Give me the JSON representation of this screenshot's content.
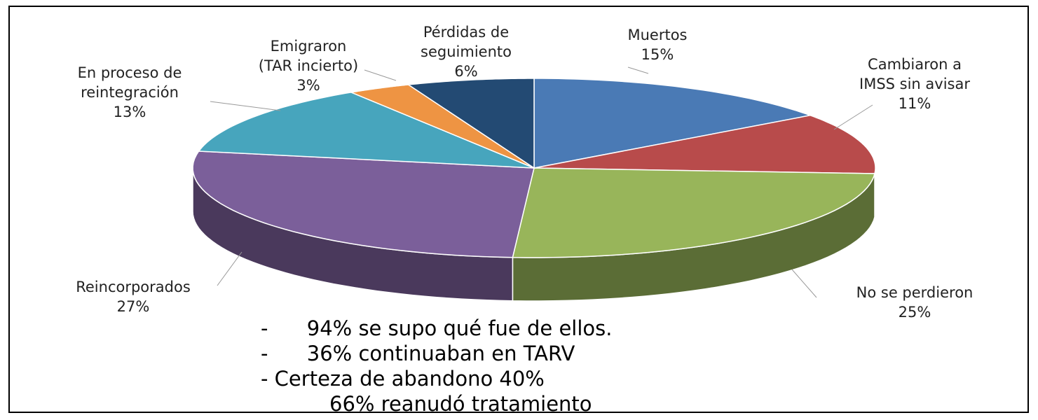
{
  "chart_data": {
    "type": "pie3d",
    "categories": [
      "Muertos",
      "Cambiaron a\nIMSS sin avisar",
      "No se perdieron",
      "Reincorporados",
      "En proceso de\nreintegración",
      "Emigraron\n(TAR incierto)",
      "Pérdidas de\nseguimiento"
    ],
    "values": [
      15,
      11,
      25,
      27,
      13,
      3,
      6
    ],
    "value_labels": [
      "15%",
      "11%",
      "25%",
      "27%",
      "13%",
      "3%",
      "6%"
    ],
    "colors": [
      "#4a7ab5",
      "#b84b4b",
      "#98b55a",
      "#7b5f9a",
      "#47a5bd",
      "#ee9443",
      "#234a73"
    ],
    "notes": [
      "-      94% se supo qué fue de ellos.",
      "-      36% continuaban en TARV",
      "- Certeza de abandono 40%",
      "66% reanudó tratamiento"
    ]
  }
}
